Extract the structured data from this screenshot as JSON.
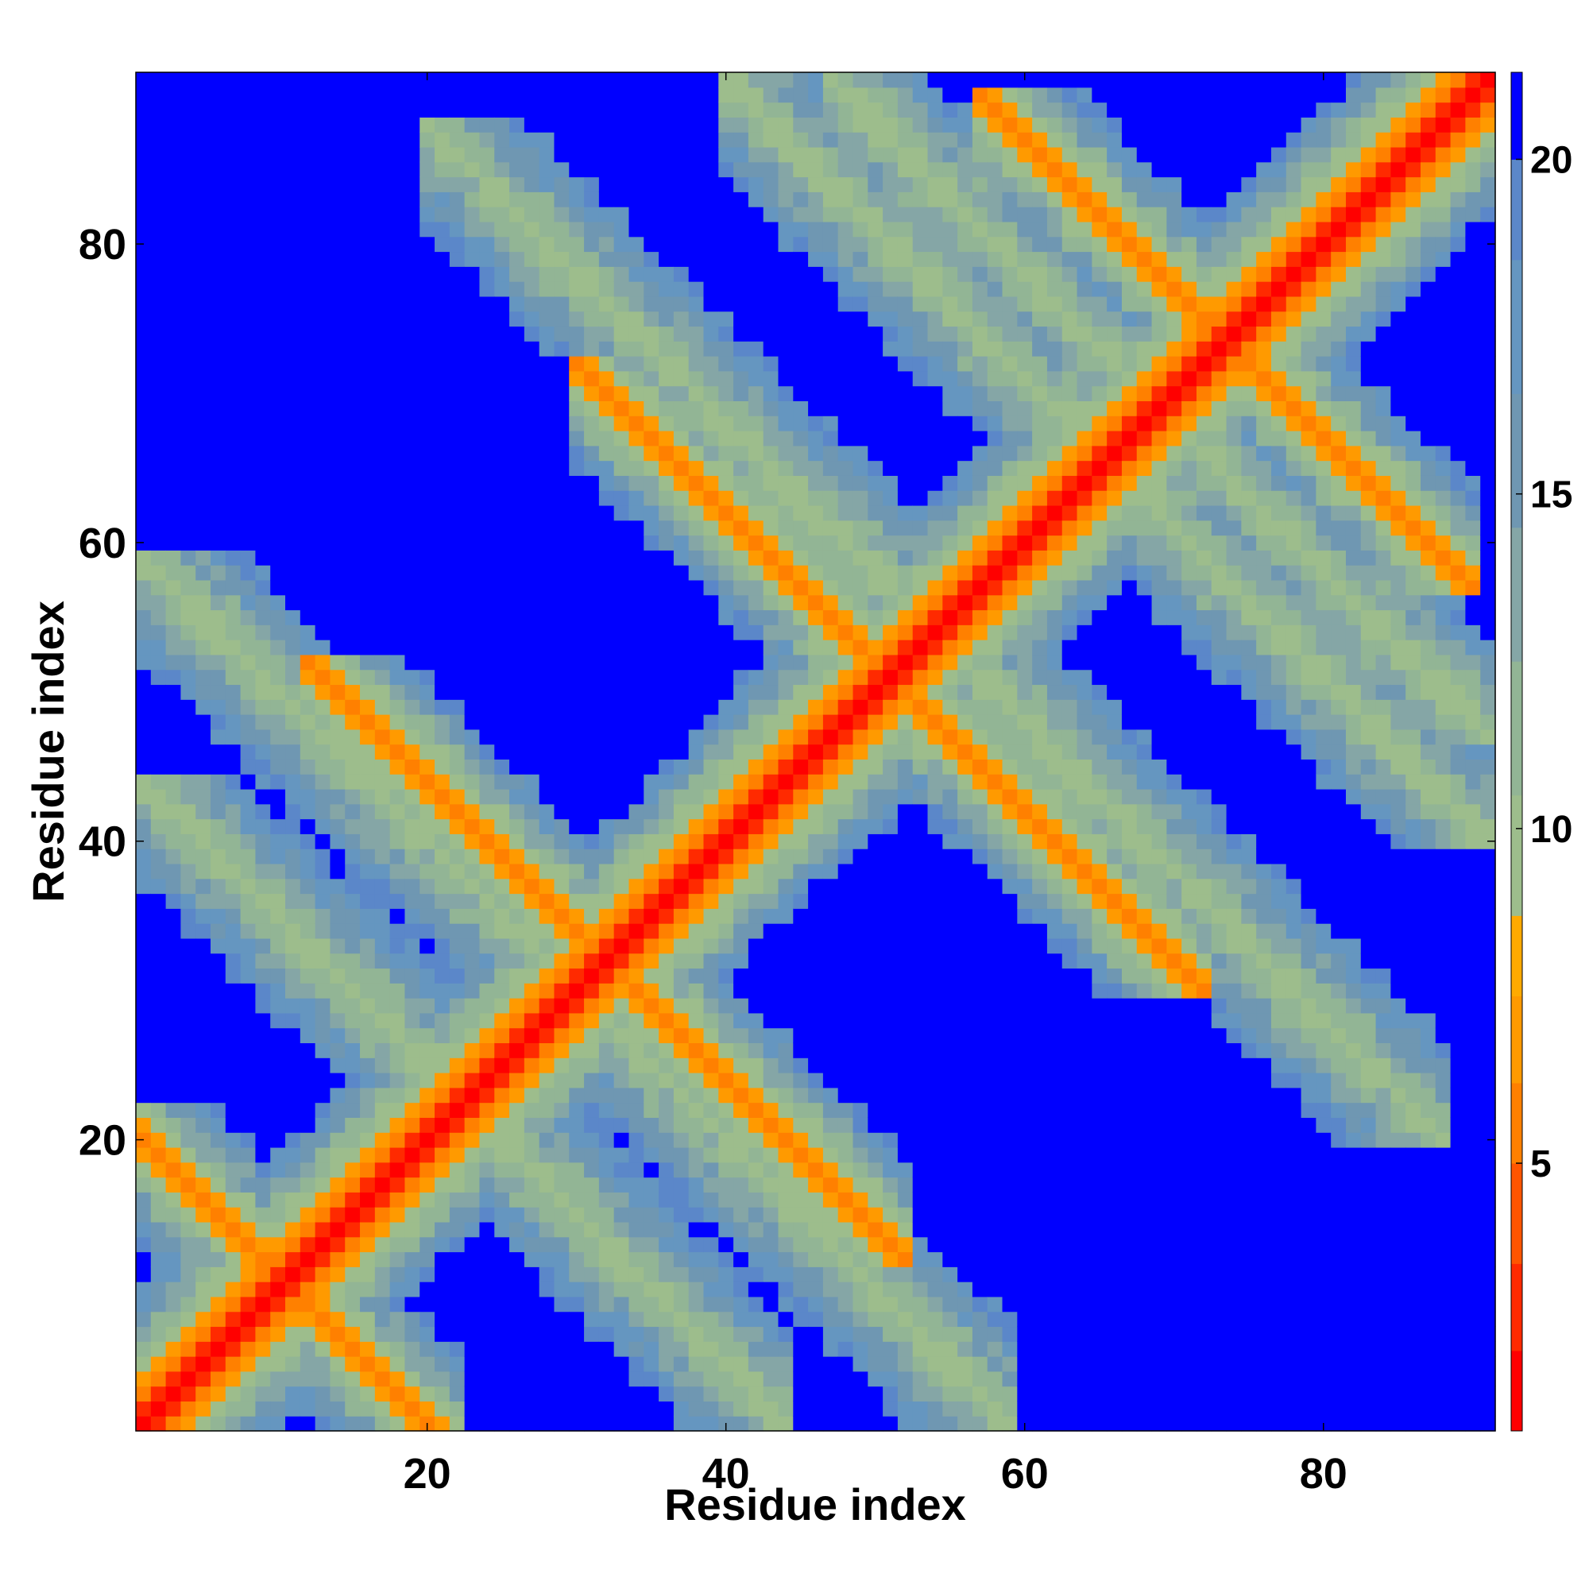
{
  "chart_data": {
    "type": "heatmap",
    "title": "",
    "xlabel": "Residue index",
    "ylabel": "Residue index",
    "xlim": [
      1,
      91
    ],
    "ylim": [
      1,
      91
    ],
    "n_residues": 91,
    "x_ticks": [
      "20",
      "40",
      "60",
      "80"
    ],
    "y_ticks": [
      "20",
      "40",
      "60",
      "80"
    ],
    "colorbar": {
      "range": [
        1,
        21.3
      ],
      "ticks": [
        "5",
        "10",
        "15",
        "20"
      ],
      "palette": [
        {
          "max": 2.2,
          "color": "#ff0000"
        },
        {
          "max": 3.5,
          "color": "#ff2a00"
        },
        {
          "max": 5.0,
          "color": "#ff5500"
        },
        {
          "max": 6.2,
          "color": "#ff8000"
        },
        {
          "max": 7.5,
          "color": "#ff9a00"
        },
        {
          "max": 8.7,
          "color": "#ffaa00"
        },
        {
          "max": 10.5,
          "color": "#9dbd8c"
        },
        {
          "max": 12.5,
          "color": "#92b595"
        },
        {
          "max": 14.5,
          "color": "#85a6a6"
        },
        {
          "max": 16.5,
          "color": "#6f97b2"
        },
        {
          "max": 18.5,
          "color": "#6596c0"
        },
        {
          "max": 20.0,
          "color": "#5b87c9"
        },
        {
          "max": 21.3,
          "color": "#0000ff"
        }
      ]
    },
    "pattern": {
      "description_free": true,
      "diagonals": [
        {
          "kind": "main",
          "from": [
            1,
            1
          ],
          "to": [
            91,
            91
          ]
        },
        {
          "kind": "anti",
          "from": [
            1,
            20
          ],
          "to": [
            20,
            1
          ]
        },
        {
          "kind": "anti",
          "from": [
            14,
            50
          ],
          "to": [
            50,
            14
          ]
        },
        {
          "kind": "anti",
          "from": [
            32,
            70
          ],
          "to": [
            70,
            32
          ]
        },
        {
          "kind": "anti",
          "from": [
            59,
            88
          ],
          "to": [
            88,
            59
          ]
        }
      ],
      "broad_bands": [
        {
          "kind": "anti",
          "from": [
            1,
            59
          ],
          "to": [
            59,
            1
          ]
        },
        {
          "kind": "anti",
          "from": [
            20,
            88
          ],
          "to": [
            88,
            20
          ]
        },
        {
          "kind": "anti",
          "from": [
            40,
            91
          ],
          "to": [
            91,
            40
          ]
        },
        {
          "kind": "anti",
          "from": [
            1,
            44
          ],
          "to": [
            44,
            1
          ]
        },
        {
          "kind": "anti",
          "from": [
            47,
            91
          ],
          "to": [
            91,
            47
          ]
        }
      ]
    }
  }
}
